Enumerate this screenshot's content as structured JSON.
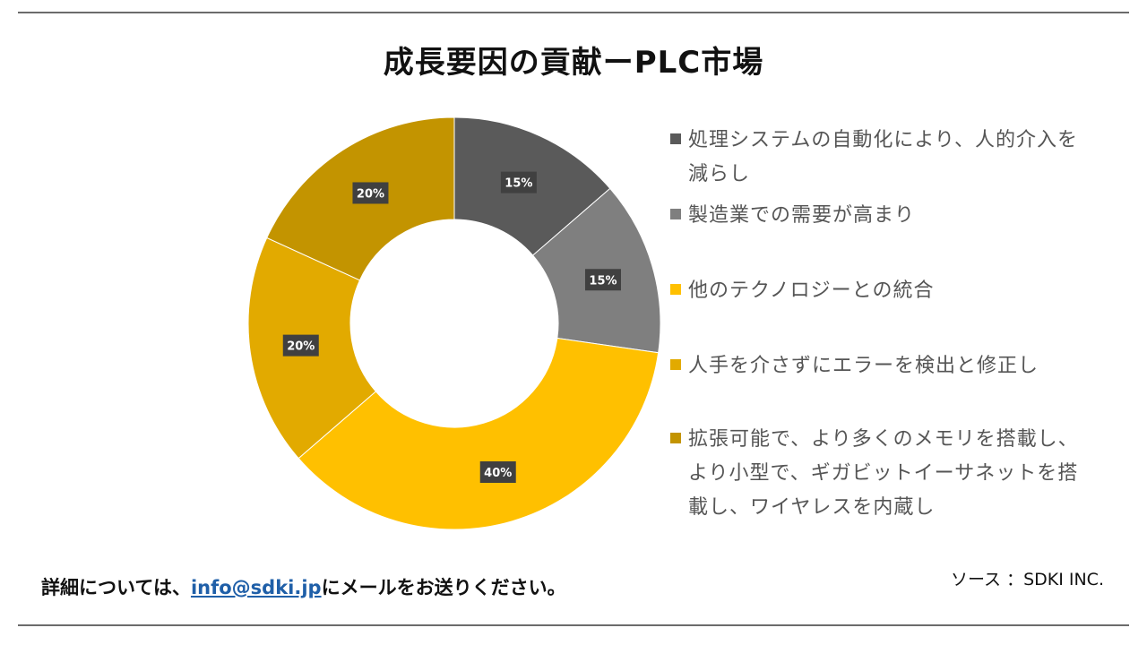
{
  "title": "成長要因の貢献ーPLC市場",
  "chart_data": {
    "type": "pie",
    "variant": "donut",
    "labels": [
      "処理システムの自動化により、人的介入を減らし",
      "製造業での需要が高まり",
      "他のテクノロジーとの統合",
      "人手を介さずにエラーを検出と修正し",
      "拡張可能で、より多くのメモリを搭載し、より小型で、ギガビットイーサネットを搭載し、ワイヤレスを内蔵し"
    ],
    "values": [
      15,
      15,
      40,
      20,
      20
    ],
    "value_labels": [
      "15%",
      "15%",
      "40%",
      "20%",
      "20%"
    ],
    "colors": [
      "#5a5a5a",
      "#7f7f7f",
      "#ffc000",
      "#e2aa00",
      "#c39400"
    ],
    "legend_position": "right"
  },
  "footer": {
    "prefix": "詳細については、",
    "email": "info@sdki.jp",
    "suffix": "にメールをお送りください。"
  },
  "source": "ソース ：SDKI INC."
}
